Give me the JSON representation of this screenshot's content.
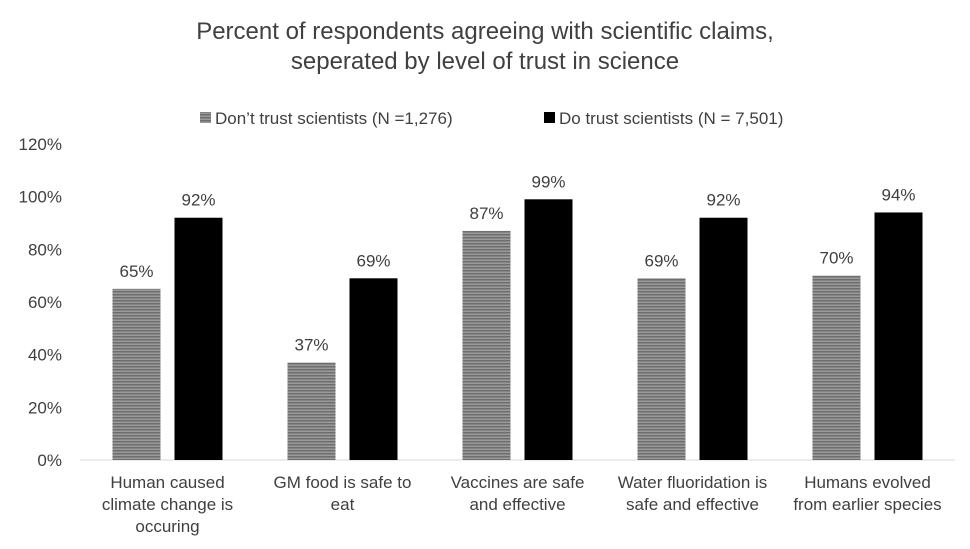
{
  "chart_data": {
    "type": "bar",
    "title": [
      "Percent of respondents agreeing with scientific claims,",
      "seperated by level of trust in science"
    ],
    "categories": [
      [
        "Human caused",
        "climate change is",
        "occuring"
      ],
      [
        "GM food is safe to",
        "eat"
      ],
      [
        "Vaccines are safe",
        "and effective"
      ],
      [
        "Water fluoridation is",
        "safe and effective"
      ],
      [
        "Humans evolved",
        "from earlier species"
      ]
    ],
    "series": [
      {
        "name": "Don’t trust scientists (N =1,276)",
        "values": [
          65,
          37,
          87,
          69,
          70
        ],
        "labels": [
          "65%",
          "37%",
          "87%",
          "69%",
          "70%"
        ],
        "color": "#8c8c8c",
        "pattern": "hatched"
      },
      {
        "name": "Do trust scientists (N = 7,501)",
        "values": [
          92,
          69,
          99,
          92,
          94
        ],
        "labels": [
          "92%",
          "69%",
          "99%",
          "92%",
          "94%"
        ],
        "color": "#000000",
        "pattern": "solid"
      }
    ],
    "ylim": [
      0,
      120
    ],
    "yticks": [
      0,
      20,
      40,
      60,
      80,
      100,
      120
    ],
    "ytick_labels": [
      "0%",
      "20%",
      "40%",
      "60%",
      "80%",
      "100%",
      "120%"
    ],
    "grid": false,
    "legend_position": "top"
  }
}
